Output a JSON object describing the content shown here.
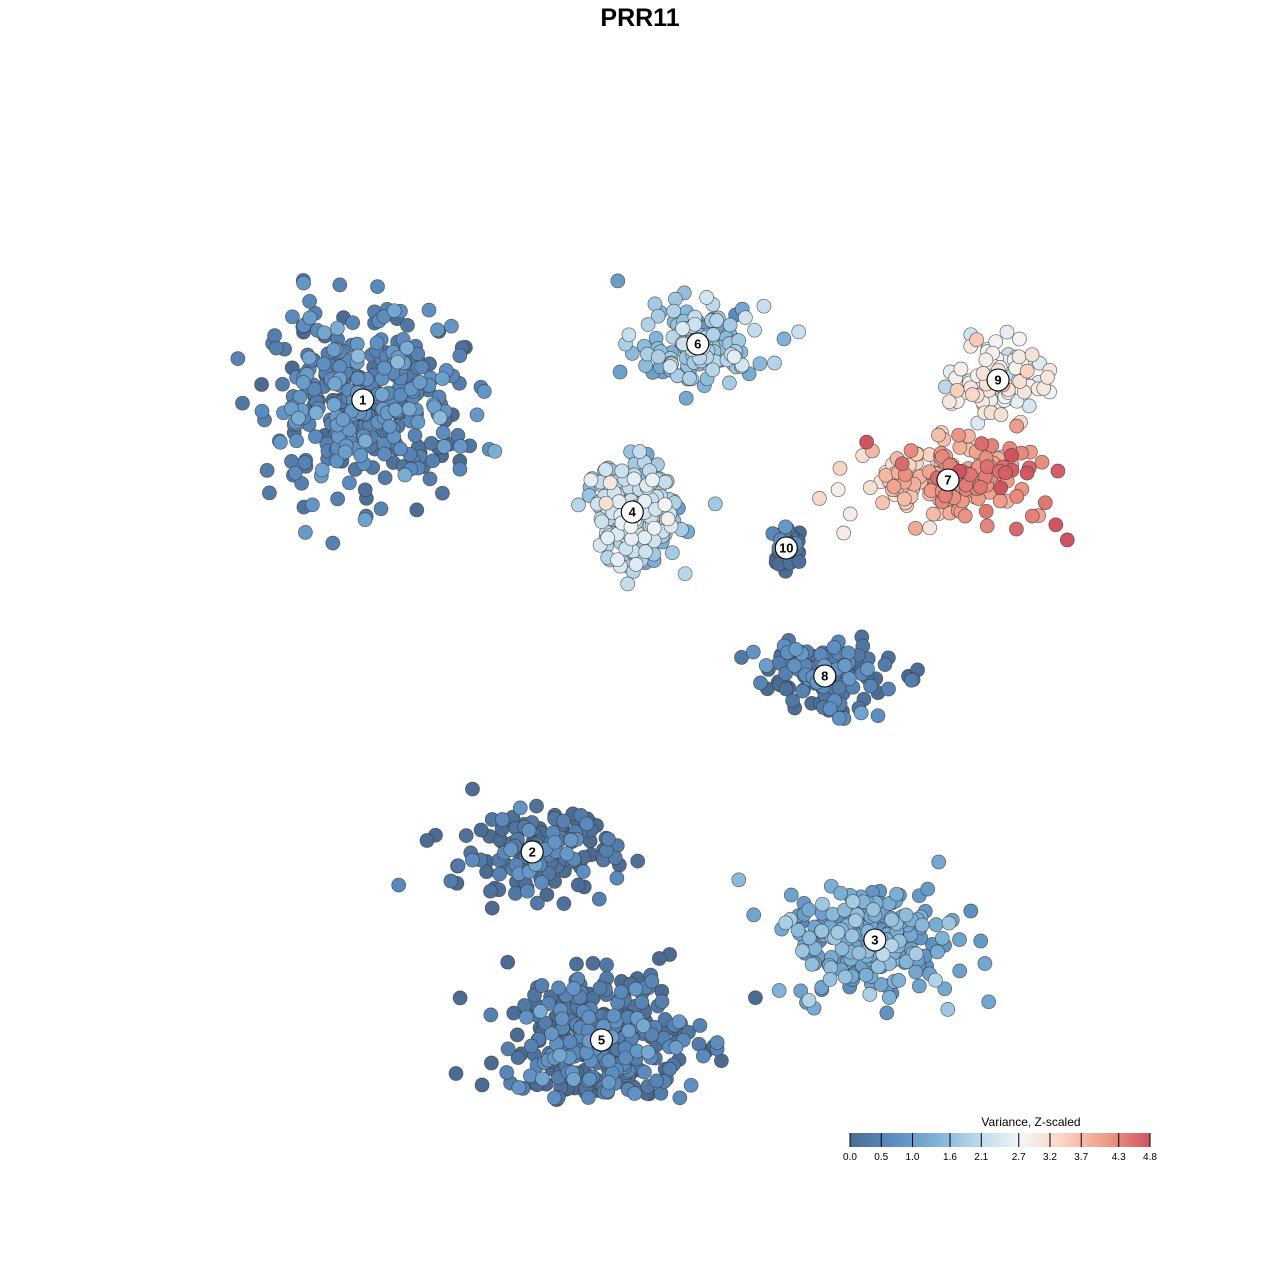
{
  "chart_data": {
    "type": "scatter",
    "title": "PRR11",
    "xlabel": "",
    "ylabel": "",
    "grid": false,
    "legend": {
      "title": "Variance, Z-scaled",
      "placement": "bottom-right",
      "range": [
        0.0,
        4.8
      ],
      "ticks": [
        0.0,
        0.5,
        1.0,
        1.6,
        2.1,
        2.7,
        3.2,
        3.7,
        4.3,
        4.8
      ],
      "tick_labels": [
        "0.0",
        "0.5",
        "1.0",
        "1.6",
        "2.1",
        "2.7",
        "3.2",
        "3.7",
        "4.3",
        "4.8"
      ],
      "colors": [
        "#4b6b93",
        "#5b8cc0",
        "#7db1d6",
        "#bcd9ea",
        "#f4f6f8",
        "#f8d3c0",
        "#ee9a86",
        "#cf5460"
      ]
    },
    "clusters": [
      {
        "label": "1",
        "x": -7.2,
        "y": 5.5,
        "value": 0.5,
        "spread": [
          2.3,
          2.0
        ],
        "count": 380
      },
      {
        "label": "2",
        "x": -2.8,
        "y": -5.8,
        "value": 0.15,
        "spread": [
          1.9,
          1.0
        ],
        "count": 160
      },
      {
        "label": "3",
        "x": 6.1,
        "y": -8.0,
        "value": 1.2,
        "spread": [
          1.9,
          1.3
        ],
        "count": 230
      },
      {
        "label": "4",
        "x": -0.2,
        "y": 2.7,
        "value": 1.9,
        "spread": [
          1.1,
          1.1
        ],
        "count": 220
      },
      {
        "label": "5",
        "x": -1.0,
        "y": -10.5,
        "value": 0.3,
        "spread": [
          2.2,
          1.6
        ],
        "count": 340
      },
      {
        "label": "6",
        "x": 1.5,
        "y": 6.9,
        "value": 1.6,
        "spread": [
          1.6,
          0.9
        ],
        "count": 140
      },
      {
        "label": "7",
        "x": 8.0,
        "y": 3.5,
        "value": 3.9,
        "spread": [
          2.2,
          0.9
        ],
        "count": 180
      },
      {
        "label": "8",
        "x": 4.8,
        "y": -1.4,
        "value": 0.3,
        "spread": [
          1.6,
          0.8
        ],
        "count": 130
      },
      {
        "label": "9",
        "x": 9.3,
        "y": 6.0,
        "value": 2.8,
        "spread": [
          1.1,
          0.9
        ],
        "count": 90
      },
      {
        "label": "10",
        "x": 3.8,
        "y": 1.8,
        "value": 0.1,
        "spread": [
          0.4,
          0.5
        ],
        "count": 40
      }
    ]
  }
}
